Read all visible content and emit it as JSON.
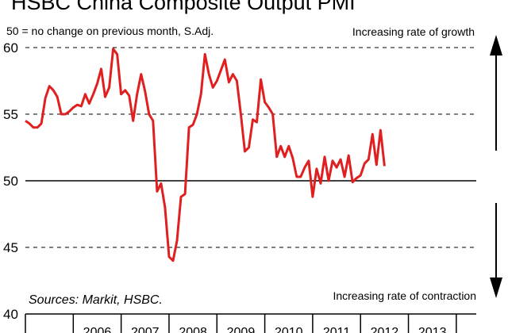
{
  "chart_data": {
    "type": "line",
    "title": "HSBC China Composite Output PMI",
    "subtitle": "50 = no change on previous month, S.Adj.",
    "annotation_top": "Increasing rate of growth",
    "annotation_bottom": "Increasing rate of contraction",
    "source": "Sources: Markit, HSBC.",
    "ylim": [
      40,
      60
    ],
    "y_ticks": [
      40,
      45,
      50,
      55,
      60
    ],
    "x_range": [
      "2005-01",
      "2014-06"
    ],
    "x_tick_labels": [
      "2006",
      "2007",
      "2008",
      "2009",
      "2010",
      "2011",
      "2012",
      "2013"
    ],
    "reference_line": 50,
    "grid": "dashed horizontal at 45, 55, 60",
    "line_color": "#e02020",
    "series": [
      {
        "points": [
          [
            "2005-01",
            54.5
          ],
          [
            "2005-02",
            54.3
          ],
          [
            "2005-03",
            54.0
          ],
          [
            "2005-04",
            54.0
          ],
          [
            "2005-05",
            54.3
          ],
          [
            "2005-06",
            56.2
          ],
          [
            "2005-07",
            57.1
          ],
          [
            "2005-08",
            56.8
          ],
          [
            "2005-09",
            56.3
          ],
          [
            "2005-10",
            55.0
          ],
          [
            "2005-11",
            55.0
          ],
          [
            "2005-12",
            55.2
          ],
          [
            "2006-01",
            55.5
          ],
          [
            "2006-02",
            55.7
          ],
          [
            "2006-03",
            55.6
          ],
          [
            "2006-04",
            56.5
          ],
          [
            "2006-05",
            55.8
          ],
          [
            "2006-06",
            56.5
          ],
          [
            "2006-07",
            57.3
          ],
          [
            "2006-08",
            58.4
          ],
          [
            "2006-09",
            56.3
          ],
          [
            "2006-10",
            57.0
          ],
          [
            "2006-11",
            59.9
          ],
          [
            "2006-12",
            59.5
          ],
          [
            "2007-01",
            56.5
          ],
          [
            "2007-02",
            56.8
          ],
          [
            "2007-03",
            56.4
          ],
          [
            "2007-04",
            54.5
          ],
          [
            "2007-05",
            56.5
          ],
          [
            "2007-06",
            58.0
          ],
          [
            "2007-07",
            56.7
          ],
          [
            "2007-08",
            55.0
          ],
          [
            "2007-09",
            54.5
          ],
          [
            "2007-10",
            49.2
          ],
          [
            "2007-11",
            49.8
          ],
          [
            "2007-12",
            48.0
          ],
          [
            "2008-01",
            44.3
          ],
          [
            "2008-02",
            44.0
          ],
          [
            "2008-03",
            45.5
          ],
          [
            "2008-04",
            48.8
          ],
          [
            "2008-05",
            49.0
          ],
          [
            "2008-06",
            54.0
          ],
          [
            "2008-07",
            54.2
          ],
          [
            "2008-08",
            55.0
          ],
          [
            "2008-09",
            56.5
          ],
          [
            "2008-10",
            59.5
          ],
          [
            "2008-11",
            58.0
          ],
          [
            "2008-12",
            57.0
          ],
          [
            "2009-01",
            57.5
          ],
          [
            "2009-02",
            58.3
          ],
          [
            "2009-03",
            59.1
          ],
          [
            "2009-04",
            57.4
          ],
          [
            "2009-05",
            58.0
          ],
          [
            "2009-06",
            57.5
          ],
          [
            "2009-07",
            55.0
          ],
          [
            "2009-08",
            52.2
          ],
          [
            "2009-09",
            52.5
          ],
          [
            "2009-10",
            54.6
          ],
          [
            "2009-11",
            54.4
          ],
          [
            "2009-12",
            57.6
          ],
          [
            "2010-01",
            55.9
          ],
          [
            "2010-02",
            55.5
          ],
          [
            "2010-03",
            55.0
          ],
          [
            "2010-04",
            51.8
          ],
          [
            "2010-05",
            52.6
          ],
          [
            "2010-06",
            51.8
          ],
          [
            "2010-07",
            52.6
          ],
          [
            "2010-08",
            51.7
          ],
          [
            "2010-09",
            50.3
          ],
          [
            "2010-10",
            50.3
          ],
          [
            "2010-11",
            51.0
          ],
          [
            "2010-12",
            51.5
          ],
          [
            "2011-01",
            48.8
          ],
          [
            "2011-02",
            50.9
          ],
          [
            "2011-03",
            49.8
          ],
          [
            "2011-04",
            51.8
          ],
          [
            "2011-05",
            50.0
          ],
          [
            "2011-06",
            51.5
          ],
          [
            "2011-07",
            51.0
          ],
          [
            "2011-08",
            51.6
          ],
          [
            "2011-09",
            50.3
          ],
          [
            "2011-10",
            51.9
          ],
          [
            "2011-11",
            49.9
          ],
          [
            "2011-12",
            50.2
          ],
          [
            "2012-01",
            50.4
          ],
          [
            "2012-02",
            51.3
          ],
          [
            "2012-03",
            51.6
          ],
          [
            "2012-04",
            53.5
          ],
          [
            "2012-05",
            51.2
          ],
          [
            "2012-06",
            53.8
          ],
          [
            "2012-07",
            51.1
          ]
        ]
      }
    ]
  }
}
